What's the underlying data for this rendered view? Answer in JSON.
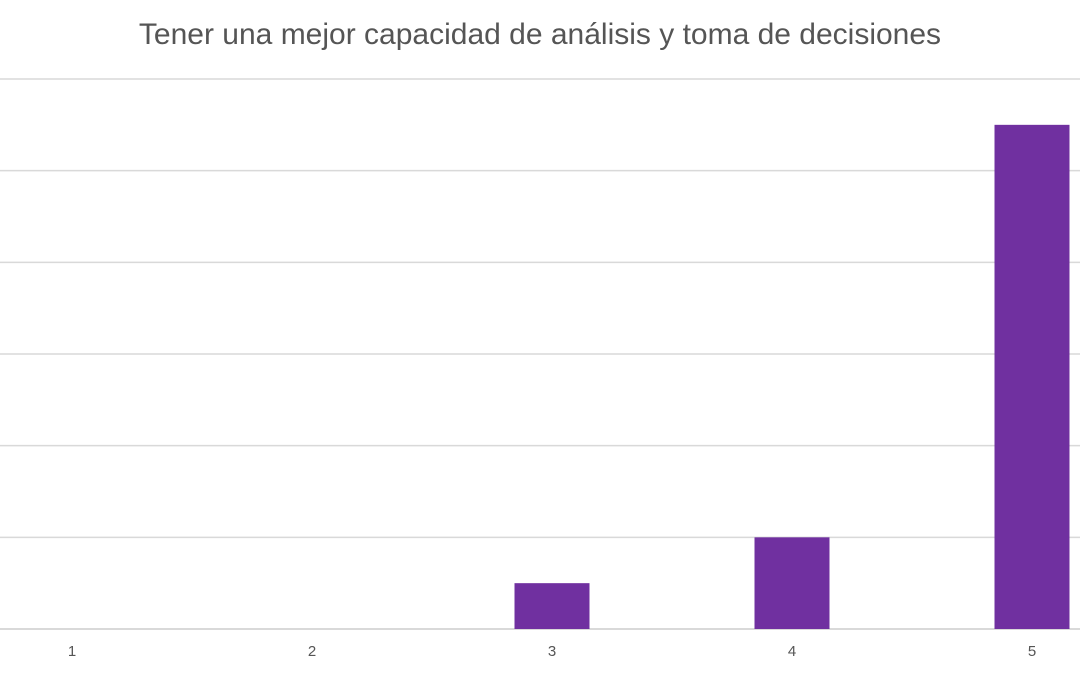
{
  "chart_data": {
    "type": "bar",
    "title": "Tener una mejor capacidad de análisis y toma de decisiones",
    "categories": [
      "1",
      "2",
      "3",
      "4",
      "5"
    ],
    "values": [
      0,
      0,
      1,
      2,
      11
    ],
    "ylim": [
      0,
      12
    ],
    "grid": true,
    "legend": "none",
    "bar_color": "#7030a0",
    "grid_color": "#d9d9d9"
  }
}
